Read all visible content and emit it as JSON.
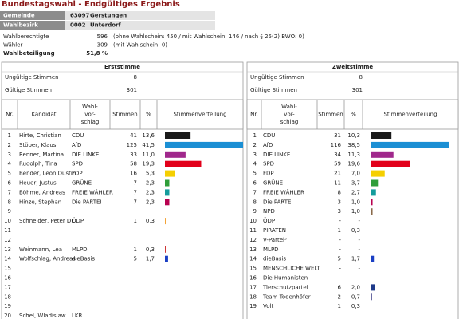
{
  "header": {
    "title": "Bundestagswahl - Endgültiges Ergebnis",
    "rows": [
      [
        "Gemeinde",
        "63097",
        "Gerstungen"
      ],
      [
        "Wahlbezirk",
        "0002",
        "Unterdorf"
      ]
    ]
  },
  "info": [
    [
      "Wahlberechtigte",
      596,
      "(ohne Wahlschein: 450 / mit Wahlschein: 146 / nach § 25(2) BWO: 0)"
    ],
    [
      "Wähler",
      309,
      "(mit Wahlschein: 0)"
    ],
    [
      "Wahlbeteiligung",
      "51,8 %"
    ]
  ],
  "erststimme": {
    "title": "Erststimme",
    "invalid_label": "Ungültige Stimmen",
    "invalid": 8,
    "valid_label": "Gültige Stimmen",
    "valid": 301,
    "columns": [
      [
        "Nr."
      ],
      [
        "Kandidat"
      ],
      [
        "Wahl-",
        "vor-",
        "schlag"
      ],
      [
        "Stimmen"
      ],
      [
        "%"
      ],
      [
        "Stimmenverteilung"
      ]
    ],
    "rows": [
      {
        "nr": 1,
        "name": "Hirte, Christian",
        "party": "CDU",
        "votes": 41,
        "percent": "13,6",
        "color": "#1a1a1a"
      },
      {
        "nr": 2,
        "name": "Stöber, Klaus",
        "party": "AfD",
        "votes": 125,
        "percent": "41,5",
        "color": "#1b8fd4"
      },
      {
        "nr": 3,
        "name": "Renner, Martina",
        "party": "DIE LINKE",
        "votes": 33,
        "percent": "11,0",
        "color": "#a0288c"
      },
      {
        "nr": 4,
        "name": "Rudolph, Tina",
        "party": "SPD",
        "votes": 58,
        "percent": "19,3",
        "color": "#e2001a"
      },
      {
        "nr": 5,
        "name": "Bender, Leon Dustin",
        "party": "FDP",
        "votes": 16,
        "percent": "5,3",
        "color": "#f5cf00"
      },
      {
        "nr": 6,
        "name": "Heuer, Justus",
        "party": "GRÜNE",
        "votes": 7,
        "percent": "2,3",
        "color": "#2f9e3a"
      },
      {
        "nr": 7,
        "name": "Böhme, Andreas",
        "party": "FREIE WÄHLER",
        "votes": 7,
        "percent": "2,3",
        "color": "#159c9c"
      },
      {
        "nr": 8,
        "name": "Hinze, Stephan",
        "party": "Die PARTEI",
        "votes": 7,
        "percent": "2,3",
        "color": "#b8004f"
      },
      {
        "nr": 9
      },
      {
        "nr": 10,
        "name": "Schneider, Peter Dr.",
        "party": "ÖDP",
        "votes": 1,
        "percent": "0,3",
        "color": "#f08a00"
      },
      {
        "nr": 11
      },
      {
        "nr": 12
      },
      {
        "nr": 13,
        "name": "Weinmann, Lea",
        "party": "MLPD",
        "votes": 1,
        "percent": "0,3",
        "color": "#c00000"
      },
      {
        "nr": 14,
        "name": "Wolfschlag, Andreas",
        "party": "dieBasis",
        "votes": 5,
        "percent": "1,7",
        "color": "#1a3fc4"
      },
      {
        "nr": 15
      },
      {
        "nr": 16
      },
      {
        "nr": 17
      },
      {
        "nr": 18
      },
      {
        "nr": 19
      },
      {
        "nr": 20,
        "name": "Schel, Wladislaw",
        "party": "LKR"
      }
    ]
  },
  "zweitstimme": {
    "title": "Zweitstimme",
    "invalid_label": "Ungültige Stimmen",
    "invalid": 8,
    "valid_label": "Gültige Stimmen",
    "valid": 301,
    "columns": [
      [
        "Nr."
      ],
      [
        "Wahl-",
        "vor-",
        "schlag"
      ],
      [
        "Stimmen"
      ],
      [
        "%"
      ],
      [
        "Stimmenverteilung"
      ]
    ],
    "rows": [
      {
        "nr": 1,
        "party": "CDU",
        "votes": 31,
        "percent": "10,3",
        "color": "#1a1a1a"
      },
      {
        "nr": 2,
        "party": "AfD",
        "votes": 116,
        "percent": "38,5",
        "color": "#1b8fd4"
      },
      {
        "nr": 3,
        "party": "DIE LINKE",
        "votes": 34,
        "percent": "11,3",
        "color": "#a0288c"
      },
      {
        "nr": 4,
        "party": "SPD",
        "votes": 59,
        "percent": "19,6",
        "color": "#e2001a"
      },
      {
        "nr": 5,
        "party": "FDP",
        "votes": 21,
        "percent": "7,0",
        "color": "#f5cf00"
      },
      {
        "nr": 6,
        "party": "GRÜNE",
        "votes": 11,
        "percent": "3,7",
        "color": "#2f9e3a"
      },
      {
        "nr": 7,
        "party": "FREIE WÄHLER",
        "votes": 8,
        "percent": "2,7",
        "color": "#159c9c"
      },
      {
        "nr": 8,
        "party": "Die PARTEI",
        "votes": 3,
        "percent": "1,0",
        "color": "#b8004f"
      },
      {
        "nr": 9,
        "party": "NPD",
        "votes": 3,
        "percent": "1,0",
        "color": "#8a6a4a"
      },
      {
        "nr": 10,
        "party": "ÖDP",
        "votes": "-",
        "percent": "-"
      },
      {
        "nr": 11,
        "party": "PIRATEN",
        "votes": 1,
        "percent": "0,3",
        "color": "#f08a00"
      },
      {
        "nr": 12,
        "party": "V-Partei³",
        "votes": "-",
        "percent": "-"
      },
      {
        "nr": 13,
        "party": "MLPD",
        "votes": "-",
        "percent": "-"
      },
      {
        "nr": 14,
        "party": "dieBasis",
        "votes": 5,
        "percent": "1,7",
        "color": "#1a3fc4"
      },
      {
        "nr": 15,
        "party": "MENSCHLICHE WELT",
        "votes": "-",
        "percent": "-"
      },
      {
        "nr": 16,
        "party": "Die Humanisten",
        "votes": "-",
        "percent": "-"
      },
      {
        "nr": 17,
        "party": "Tierschutzpartei",
        "votes": 6,
        "percent": "2,0",
        "color": "#1f3a8a"
      },
      {
        "nr": 18,
        "party": "Team Todenhöfer",
        "votes": 2,
        "percent": "0,7",
        "color": "#2a2a7a"
      },
      {
        "nr": 19,
        "party": "Volt",
        "votes": 1,
        "percent": "0,3",
        "color": "#5b2a8c"
      }
    ]
  }
}
